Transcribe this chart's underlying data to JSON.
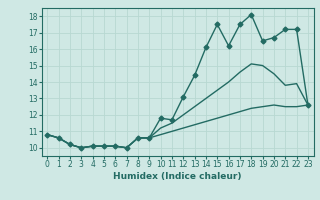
{
  "title": "",
  "xlabel": "Humidex (Indice chaleur)",
  "xlim": [
    -0.5,
    23.5
  ],
  "ylim": [
    9.5,
    18.5
  ],
  "xticks": [
    0,
    1,
    2,
    3,
    4,
    5,
    6,
    7,
    8,
    9,
    10,
    11,
    12,
    13,
    14,
    15,
    16,
    17,
    18,
    19,
    20,
    21,
    22,
    23
  ],
  "yticks": [
    10,
    11,
    12,
    13,
    14,
    15,
    16,
    17,
    18
  ],
  "bg_color": "#cfe8e4",
  "line_color": "#236b63",
  "grid_color": "#b8d8d2",
  "series": [
    {
      "x": [
        0,
        1,
        2,
        3,
        4,
        5,
        6,
        7,
        8,
        9,
        10,
        11,
        12,
        13,
        14,
        15,
        16,
        17,
        18,
        19,
        20,
        21,
        22,
        23
      ],
      "y": [
        10.8,
        10.6,
        10.2,
        10.0,
        10.1,
        10.1,
        10.1,
        10.0,
        10.6,
        10.6,
        11.8,
        11.7,
        13.1,
        14.4,
        16.1,
        17.5,
        16.2,
        17.5,
        18.1,
        16.5,
        16.7,
        17.2,
        17.2,
        12.6
      ],
      "marker": "D",
      "markersize": 2.5,
      "linewidth": 1.0
    },
    {
      "x": [
        0,
        1,
        2,
        3,
        4,
        5,
        6,
        7,
        8,
        9,
        10,
        11,
        12,
        13,
        14,
        15,
        16,
        17,
        18,
        19,
        20,
        21,
        22,
        23
      ],
      "y": [
        10.8,
        10.6,
        10.2,
        10.0,
        10.1,
        10.1,
        10.1,
        10.0,
        10.6,
        10.6,
        11.2,
        11.5,
        12.0,
        12.5,
        13.0,
        13.5,
        14.0,
        14.6,
        15.1,
        15.0,
        14.5,
        13.8,
        13.9,
        12.6
      ],
      "marker": null,
      "markersize": 0,
      "linewidth": 1.0
    },
    {
      "x": [
        0,
        1,
        2,
        3,
        4,
        5,
        6,
        7,
        8,
        9,
        10,
        11,
        12,
        13,
        14,
        15,
        16,
        17,
        18,
        19,
        20,
        21,
        22,
        23
      ],
      "y": [
        10.8,
        10.6,
        10.2,
        10.0,
        10.1,
        10.1,
        10.1,
        10.0,
        10.6,
        10.6,
        10.8,
        11.0,
        11.2,
        11.4,
        11.6,
        11.8,
        12.0,
        12.2,
        12.4,
        12.5,
        12.6,
        12.5,
        12.5,
        12.6
      ],
      "marker": null,
      "markersize": 0,
      "linewidth": 1.0
    }
  ]
}
